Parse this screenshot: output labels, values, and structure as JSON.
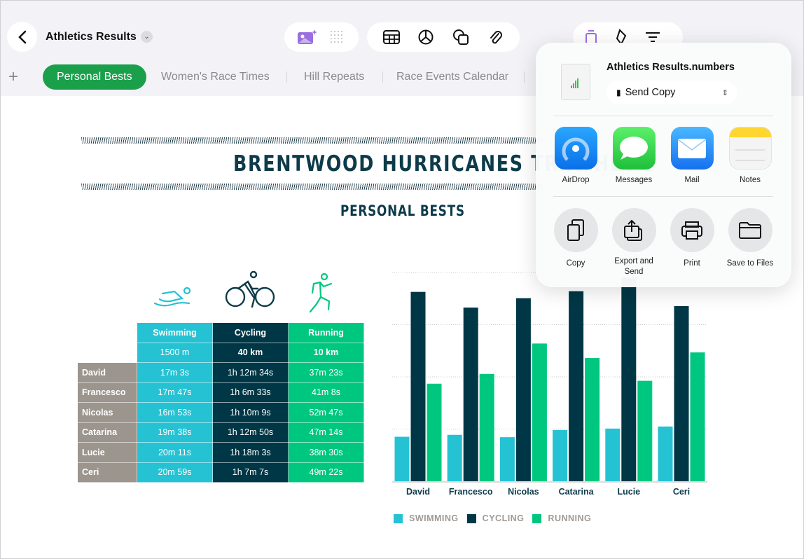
{
  "toolbar": {
    "title": "Athletics Results"
  },
  "tabs": [
    {
      "label": "Personal Bests",
      "active": true
    },
    {
      "label": "Women's Race Times"
    },
    {
      "label": "Hill Repeats"
    },
    {
      "label": "Race Events Calendar"
    }
  ],
  "sheet": {
    "title": "BRENTWOOD HURRICANES TRIATHLON",
    "subtitle": "PERSONAL BESTS",
    "columns": [
      {
        "name": "Swimming",
        "distance": "1500 m"
      },
      {
        "name": "Cycling",
        "distance": "40 km"
      },
      {
        "name": "Running",
        "distance": "10 km"
      }
    ],
    "rows": [
      {
        "name": "David",
        "times": [
          "17m 3s",
          "1h 12m 34s",
          "37m 23s"
        ]
      },
      {
        "name": "Francesco",
        "times": [
          "17m 47s",
          "1h 6m 33s",
          "41m 8s"
        ]
      },
      {
        "name": "Nicolas",
        "times": [
          "16m 53s",
          "1h 10m 9s",
          "52m 47s"
        ]
      },
      {
        "name": "Catarina",
        "times": [
          "19m 38s",
          "1h 12m 50s",
          "47m 14s"
        ]
      },
      {
        "name": "Lucie",
        "times": [
          "20m 11s",
          "1h 18m 3s",
          "38m 30s"
        ]
      },
      {
        "name": "Ceri",
        "times": [
          "20m 59s",
          "1h 7m 7s",
          "49m 22s"
        ]
      }
    ]
  },
  "chart_data": {
    "type": "bar",
    "categories": [
      "David",
      "Francesco",
      "Nicolas",
      "Catarina",
      "Lucie",
      "Ceri"
    ],
    "series": [
      {
        "name": "SWIMMING",
        "color": "#25c2d4",
        "values": [
          17.05,
          17.78,
          16.88,
          19.63,
          20.18,
          20.98
        ]
      },
      {
        "name": "CYCLING",
        "color": "#003746",
        "values": [
          72.57,
          66.55,
          70.15,
          72.83,
          78.05,
          67.12
        ]
      },
      {
        "name": "RUNNING",
        "color": "#00c77f",
        "values": [
          37.38,
          41.13,
          52.78,
          47.23,
          38.5,
          49.37
        ]
      }
    ],
    "ylim": [
      0,
      80
    ],
    "grid": true,
    "legend": "bottom"
  },
  "share": {
    "filename": "Athletics Results.numbers",
    "mode": "Send Copy",
    "apps": [
      {
        "label": "AirDrop"
      },
      {
        "label": "Messages"
      },
      {
        "label": "Mail"
      },
      {
        "label": "Notes"
      }
    ],
    "actions": [
      {
        "label": "Copy"
      },
      {
        "label": "Export and Send"
      },
      {
        "label": "Print"
      },
      {
        "label": "Save to Files"
      }
    ]
  }
}
